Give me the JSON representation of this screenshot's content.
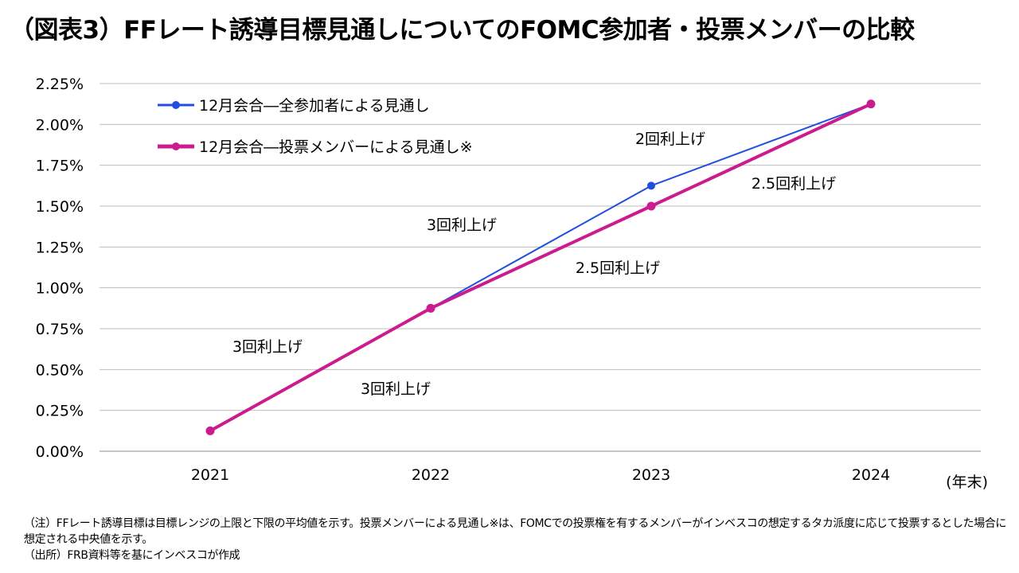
{
  "title": "（図表3）FFレート誘導目標見通しについてのFOMC参加者・投票メンバーの比較",
  "chart_data": {
    "type": "line",
    "categories": [
      "2021",
      "2022",
      "2023",
      "2024"
    ],
    "x_unit": "(年末)",
    "ylim": [
      0,
      0.0225
    ],
    "y_ticks": [
      "0.00%",
      "0.25%",
      "0.50%",
      "0.75%",
      "1.00%",
      "1.25%",
      "1.50%",
      "1.75%",
      "2.00%",
      "2.25%"
    ],
    "grid": true,
    "legend_position": "top-left",
    "series": [
      {
        "name": "12月会合―全参加者による見通し",
        "color": "#1f4fdc",
        "values": [
          0.00125,
          0.00875,
          0.01625,
          0.02125
        ]
      },
      {
        "name": "12月会合―投票メンバーによる見通し※",
        "color": "#cc1a8f",
        "values": [
          0.00125,
          0.00875,
          0.015,
          0.02125
        ]
      }
    ],
    "annotations": [
      {
        "text": "3回利上げ"
      },
      {
        "text": "3回利上げ"
      },
      {
        "text": "3回利上げ"
      },
      {
        "text": "2.5回利上げ"
      },
      {
        "text": "2回利上げ"
      },
      {
        "text": "2.5回利上げ"
      }
    ]
  },
  "notes": [
    "（注）FFレート誘導目標は目標レンジの上限と下限の平均値を示す。投票メンバーによる見通し※は、FOMCでの投票権を有するメンバーがインベスコの想定するタカ派度に応じて投票するとした場合に想定される中央値を示す。",
    "（出所）FRB資料等を基にインベスコが作成"
  ]
}
